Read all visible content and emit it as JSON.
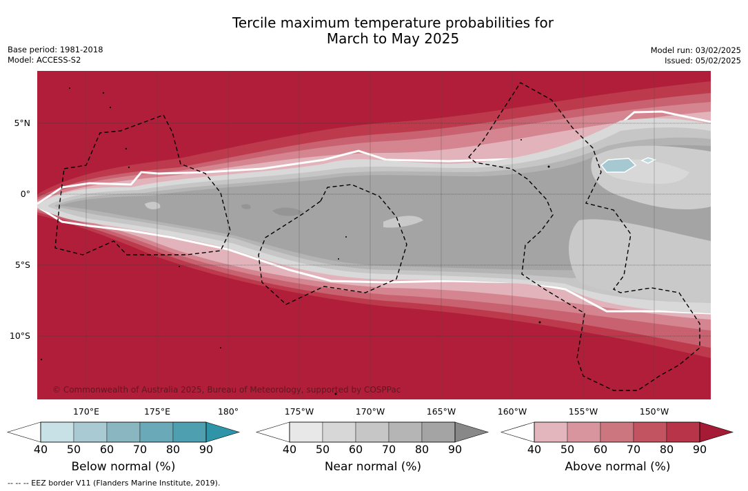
{
  "title_line1": "Tercile maximum temperature probabilities for",
  "title_line2": "March to May 2025",
  "base_period": "Base period: 1981-2018",
  "model": "Model: ACCESS-S2",
  "model_run": "Model run: 03/02/2025",
  "issued": "Issued: 05/02/2025",
  "copyright": "© Commonwealth of Australia 2025, Bureau of Meteorology, supported by COSPPac",
  "footnote": "--  --  -- EEZ border V11 (Flanders Marine Institute, 2019).",
  "lat_labels": [
    "5°N",
    "0°",
    "5°S",
    "10°S"
  ],
  "lon_labels": [
    "170°E",
    "175°E",
    "180°",
    "175°W",
    "170°W",
    "165°W",
    "160°W",
    "155°W",
    "150°W"
  ],
  "colorbars": [
    {
      "label": "Below normal (%)",
      "ticks": [
        "40",
        "50",
        "60",
        "70",
        "80",
        "90"
      ],
      "colors": [
        "#ffffff",
        "#c8e1e7",
        "#a9cad3",
        "#8ab6c2",
        "#6aa9b8",
        "#4ea0b0",
        "#2f94a8"
      ]
    },
    {
      "label": "Near normal (%)",
      "ticks": [
        "40",
        "50",
        "60",
        "70",
        "80",
        "90"
      ],
      "colors": [
        "#ffffff",
        "#e8e8e8",
        "#d7d7d7",
        "#c6c6c6",
        "#b5b5b5",
        "#a4a4a4",
        "#888888"
      ]
    },
    {
      "label": "Above normal (%)",
      "ticks": [
        "40",
        "50",
        "60",
        "70",
        "80",
        "90"
      ],
      "colors": [
        "#ffffff",
        "#e3b6bd",
        "#d9959e",
        "#cc7680",
        "#c25360",
        "#b83448",
        "#a51a35"
      ]
    }
  ]
}
